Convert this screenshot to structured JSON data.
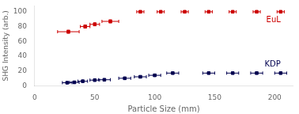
{
  "chart_data": {
    "type": "scatter",
    "xlabel": "Particle Size (mm)",
    "ylabel": "SHG Intensity (arb.)",
    "xlim": [
      0,
      215
    ],
    "ylim": [
      0,
      108
    ],
    "xticks": [
      0,
      50,
      100,
      150,
      200
    ],
    "yticks": [
      0,
      20,
      40,
      60,
      80,
      100
    ],
    "grid": false,
    "series": [
      {
        "name": "EuL",
        "color": "#cc0000",
        "marker": "square",
        "x": [
          28,
          42,
          50,
          63,
          88,
          105,
          125,
          145,
          165,
          185,
          205
        ],
        "values": [
          73,
          80,
          83,
          87,
          100,
          100,
          100,
          100,
          100,
          100,
          100
        ],
        "xerr": [
          9,
          4,
          4,
          7,
          3,
          3,
          3,
          3,
          3,
          3,
          3
        ],
        "yerr": [
          2,
          2,
          2,
          2,
          1,
          1,
          1,
          1,
          1,
          1,
          1
        ]
      },
      {
        "name": "KDP",
        "color": "#000050",
        "marker": "square",
        "x": [
          27,
          33,
          40,
          50,
          58,
          75,
          88,
          100,
          115,
          145,
          165,
          185,
          205
        ],
        "values": [
          4,
          4.5,
          6,
          7.5,
          8,
          10,
          12,
          14,
          17,
          17,
          17,
          17,
          17
        ],
        "xerr": [
          4,
          4,
          4,
          4,
          5,
          5,
          5,
          5,
          5,
          5,
          5,
          5,
          5
        ],
        "yerr": [
          1,
          1,
          1,
          1,
          1,
          1,
          1,
          1,
          1,
          1,
          1,
          1,
          1
        ]
      }
    ]
  }
}
